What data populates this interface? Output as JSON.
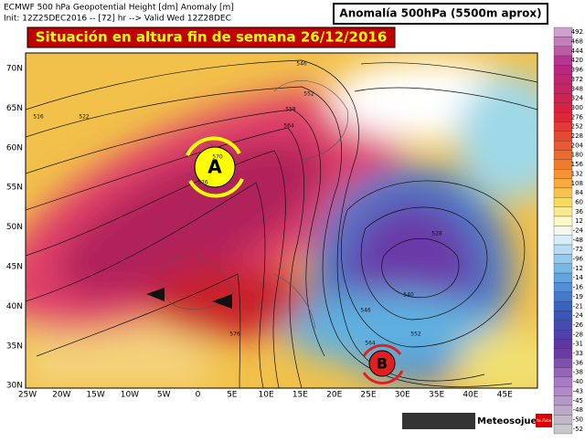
{
  "header": {
    "line1": "ECMWF 500 hPa Geopotential Height [dm] Anomaly [m]",
    "line2": "Init: 12Z25DEC2016 -- [72] hr --> Valid Wed 12Z28DEC",
    "product": "Anomalía 500hPa (5500m aprox)"
  },
  "banner": "Situación en altura fin de semana 26/12/2016",
  "latitudes": [
    "70N",
    "65N",
    "60N",
    "55N",
    "50N",
    "45N",
    "40N",
    "35N",
    "30N"
  ],
  "longitudes": [
    "25W",
    "20W",
    "15W",
    "10W",
    "5W",
    "0",
    "5E",
    "10E",
    "15E",
    "20E",
    "25E",
    "30E",
    "35E",
    "40E",
    "45E"
  ],
  "colorbar": [
    492,
    468,
    444,
    420,
    396,
    372,
    348,
    324,
    300,
    276,
    252,
    228,
    204,
    180,
    156,
    132,
    108,
    84,
    60,
    36,
    12,
    -24,
    -48,
    -72,
    -96,
    -12,
    -14,
    -16,
    -19,
    -21,
    -24,
    -26,
    -28,
    -31,
    -33,
    -36,
    -38,
    -40,
    -43,
    -45,
    -48,
    -50,
    -52
  ],
  "contour_labels": [
    "516",
    "522",
    "546",
    "552",
    "558",
    "564",
    "570",
    "576",
    "528",
    "540",
    "546",
    "552",
    "564",
    "576"
  ],
  "systems": {
    "high": "A",
    "low": "B"
  },
  "footer": {
    "brand": "Meteosojuela",
    "video": "YouTube"
  }
}
